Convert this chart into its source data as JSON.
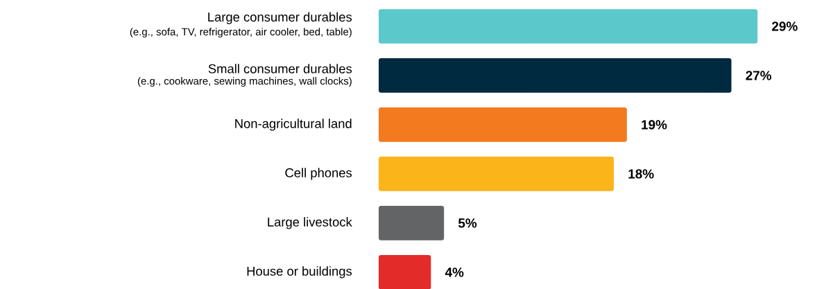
{
  "chart_data": {
    "type": "bar",
    "orientation": "horizontal",
    "data_labels": true,
    "categories": [
      "Large consumer durables",
      "Small consumer durables",
      "Non-agricultural land",
      "Cell phones",
      "Large livestock",
      "House or buildings"
    ],
    "values": [
      29,
      27,
      19,
      18,
      5,
      4
    ],
    "value_labels": [
      "29%",
      "27%",
      "19%",
      "18%",
      "5%",
      "4%"
    ],
    "colors": [
      "#5bc8cc",
      "#002a40",
      "#f47a20",
      "#fbb41a",
      "#636466",
      "#e32b2a"
    ],
    "annotations": [
      "(e.g., sofa, TV, refrigerator, air cooler, bed, table)",
      "(e.g., cookware, sewing machines, wall clocks)"
    ]
  }
}
